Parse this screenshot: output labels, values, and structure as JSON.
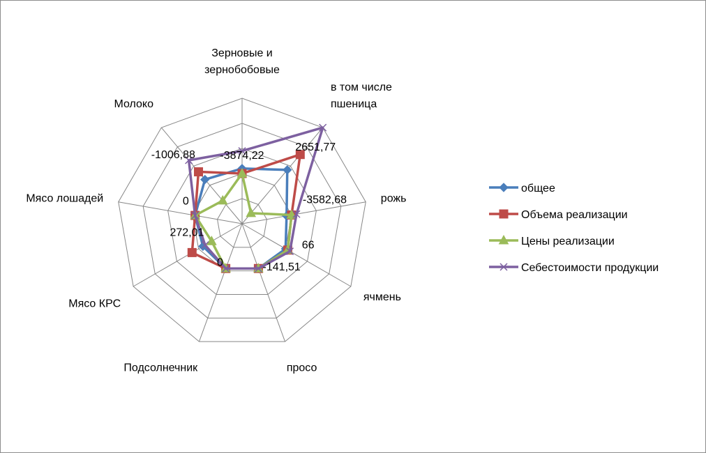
{
  "chart_data": {
    "type": "radar",
    "categories": [
      "Зерновые и зернобобовые",
      "в том числе пшеница",
      "рожь",
      "ячмень",
      "просо",
      "Подсолнечник",
      "Мясо КРС",
      "Мясо лошадей",
      "Молоко"
    ],
    "category_lines": [
      [
        "Зерновые и",
        "зернобобовые"
      ],
      [
        "в том числе",
        "пшеница"
      ],
      [
        "рожь"
      ],
      [
        "ячмень"
      ],
      [
        "просо"
      ],
      [
        "Подсолнечник"
      ],
      [
        "Мясо КРС"
      ],
      [
        "Мясо лошадей"
      ],
      [
        "Молоко"
      ]
    ],
    "data_labels": [
      "-3874,22",
      "2651,77",
      "-3582,68",
      "66",
      "-141,51",
      "0",
      "272,01",
      "0",
      "-1006,88"
    ],
    "series": [
      {
        "name": "общее",
        "color": "#4a7ebb",
        "marker": "diamond",
        "values": [
          2.2,
          2.8,
          1.8,
          2.0,
          1.9,
          1.9,
          1.8,
          1.9,
          2.3
        ]
      },
      {
        "name": "Объема реализации",
        "color": "#be4b48",
        "marker": "square",
        "values": [
          2.0,
          3.6,
          2.0,
          2.1,
          1.9,
          1.9,
          2.3,
          1.9,
          2.7
        ]
      },
      {
        "name": "Цены реализации",
        "color": "#9bbb59",
        "marker": "triangle",
        "values": [
          2.0,
          0.55,
          2.0,
          2.1,
          1.9,
          1.9,
          1.4,
          1.9,
          1.2
        ]
      },
      {
        "name": "Себестоимости продукции",
        "color": "#7d60a0",
        "marker": "x",
        "values": [
          2.9,
          5.0,
          2.2,
          2.2,
          1.9,
          1.9,
          1.7,
          1.9,
          3.3
        ]
      }
    ],
    "r_range": [
      0,
      5
    ],
    "rings": 5,
    "grid": true,
    "legend_position": "right"
  }
}
